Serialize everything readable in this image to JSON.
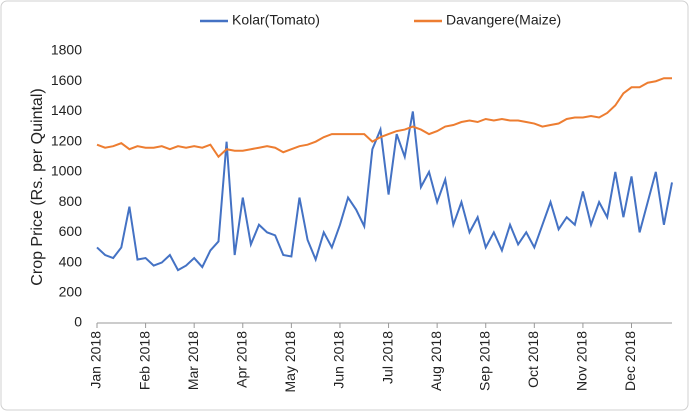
{
  "chart_data": {
    "type": "line",
    "ylabel": "Crop Price (Rs. per Quintal)",
    "categories": [
      "Jan 2018",
      null,
      null,
      null,
      null,
      null,
      "Feb 2018",
      null,
      null,
      null,
      null,
      null,
      "Mar 2018",
      null,
      null,
      null,
      null,
      null,
      "Apr 2018",
      null,
      null,
      null,
      null,
      null,
      "May 2018",
      null,
      null,
      null,
      null,
      null,
      "Jun 2018",
      null,
      null,
      null,
      null,
      null,
      "Jul 2018",
      null,
      null,
      null,
      null,
      null,
      "Aug 2018",
      null,
      null,
      null,
      null,
      null,
      "Sep 2018",
      null,
      null,
      null,
      null,
      null,
      "Oct 2018",
      null,
      null,
      null,
      null,
      null,
      "Nov 2018",
      null,
      null,
      null,
      null,
      null,
      "Dec 2018",
      null,
      null,
      null,
      null,
      null
    ],
    "series": [
      {
        "name": "Kolar(Tomato)",
        "color": "#4472c4",
        "values": [
          500,
          450,
          430,
          500,
          770,
          420,
          430,
          380,
          400,
          450,
          350,
          380,
          430,
          370,
          480,
          540,
          1200,
          450,
          830,
          520,
          650,
          600,
          580,
          450,
          440,
          830,
          550,
          420,
          600,
          500,
          650,
          830,
          750,
          640,
          1150,
          1280,
          850,
          1250,
          1100,
          1400,
          900,
          1000,
          800,
          950,
          650,
          800,
          600,
          700,
          500,
          600,
          480,
          650,
          520,
          600,
          500,
          650,
          800,
          620,
          700,
          650,
          870,
          650,
          800,
          700,
          1000,
          700,
          970,
          600,
          800,
          1000,
          650,
          930
        ]
      },
      {
        "name": "Davangere(Maize)",
        "color": "#ed7d31",
        "values": [
          1180,
          1160,
          1170,
          1190,
          1150,
          1170,
          1160,
          1160,
          1170,
          1150,
          1170,
          1160,
          1170,
          1160,
          1180,
          1100,
          1150,
          1140,
          1140,
          1150,
          1160,
          1170,
          1160,
          1130,
          1150,
          1170,
          1180,
          1200,
          1230,
          1250,
          1250,
          1250,
          1250,
          1250,
          1200,
          1230,
          1250,
          1270,
          1280,
          1300,
          1280,
          1250,
          1270,
          1300,
          1310,
          1330,
          1340,
          1330,
          1350,
          1340,
          1350,
          1340,
          1340,
          1330,
          1320,
          1300,
          1310,
          1320,
          1350,
          1360,
          1360,
          1370,
          1360,
          1390,
          1440,
          1520,
          1560,
          1560,
          1590,
          1600,
          1620,
          1620
        ]
      }
    ],
    "ylim": [
      0,
      1800
    ],
    "yticks": [
      0,
      200,
      400,
      600,
      800,
      1000,
      1200,
      1400,
      1600,
      1800
    ],
    "legend": "top",
    "grid": false
  }
}
